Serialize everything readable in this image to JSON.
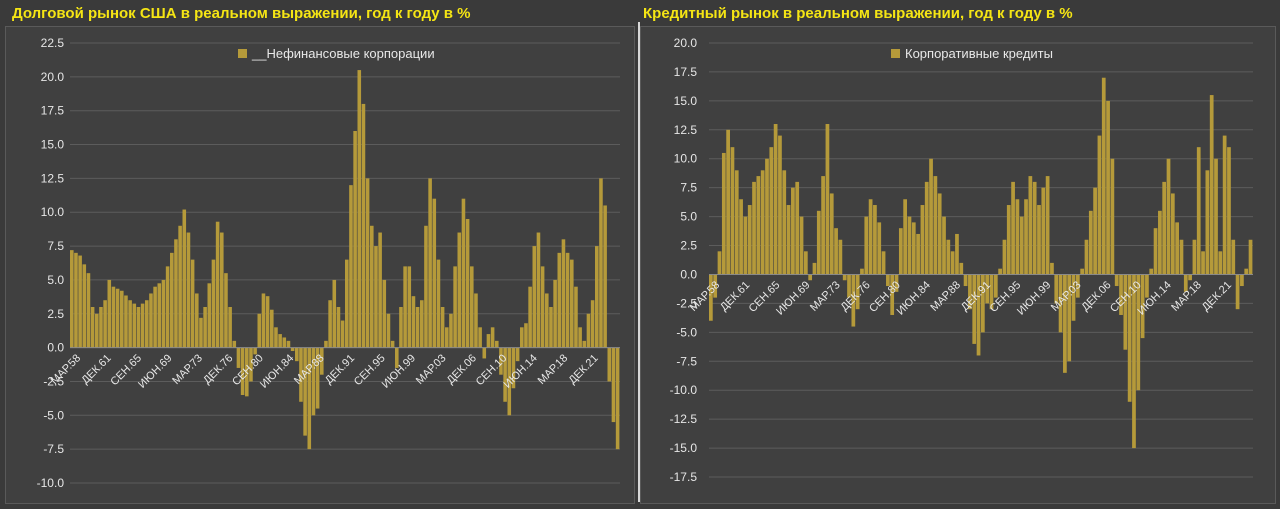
{
  "charts": [
    {
      "title": "Долговой рынок США в реальном выражении, год к году в %",
      "chart_data": {
        "type": "bar",
        "series": [
          {
            "name": "__Нефинансовые корпорации",
            "color": "#b59a3a"
          }
        ],
        "y_ticks": [
          "22.5",
          "20.0",
          "17.5",
          "15.0",
          "12.5",
          "10.0",
          "7.5",
          "5.0",
          "2.5",
          "0.0",
          "-2.5",
          "-5.0",
          "-7.5",
          "-10.0"
        ],
        "ylim": [
          -10,
          22.5
        ],
        "categories": [
          "МАР.58",
          "ДЕК.61",
          "СЕН.65",
          "ИЮН.69",
          "МАР.73",
          "ДЕК.76",
          "СЕН.80",
          "ИЮН.84",
          "МАР.88",
          "ДЕК.91",
          "СЕН.95",
          "ИЮН.99",
          "МАР.03",
          "ДЕК.06",
          "СЕН.10",
          "ИЮН.14",
          "МАР.18",
          "ДЕК.21"
        ],
        "grid": true,
        "legend_position": "top-center",
        "anchors": [
          [
            0,
            7.2
          ],
          [
            2,
            6.8
          ],
          [
            4,
            5.5
          ],
          [
            5,
            3.0
          ],
          [
            6,
            2.5
          ],
          [
            8,
            3.5
          ],
          [
            9,
            5.0
          ],
          [
            10,
            4.5
          ],
          [
            12,
            4.2
          ],
          [
            14,
            3.5
          ],
          [
            16,
            3.0
          ],
          [
            18,
            3.5
          ],
          [
            20,
            4.5
          ],
          [
            22,
            5.0
          ],
          [
            24,
            7.0
          ],
          [
            26,
            9.0
          ],
          [
            27,
            10.2
          ],
          [
            28,
            8.5
          ],
          [
            29,
            6.5
          ],
          [
            30,
            4.0
          ],
          [
            31,
            2.2
          ],
          [
            32,
            3.0
          ],
          [
            34,
            6.5
          ],
          [
            35,
            9.3
          ],
          [
            36,
            8.5
          ],
          [
            37,
            5.5
          ],
          [
            38,
            3.0
          ],
          [
            39,
            0.5
          ],
          [
            40,
            -1.5
          ],
          [
            41,
            -3.5
          ],
          [
            42,
            -3.6
          ],
          [
            43,
            -2.5
          ],
          [
            44,
            -0.5
          ],
          [
            45,
            2.5
          ],
          [
            46,
            4.0
          ],
          [
            47,
            3.8
          ],
          [
            48,
            2.8
          ],
          [
            49,
            1.5
          ],
          [
            50,
            1.0
          ],
          [
            52,
            0.5
          ],
          [
            54,
            -1.0
          ],
          [
            55,
            -4.0
          ],
          [
            56,
            -6.5
          ],
          [
            57,
            -7.5
          ],
          [
            58,
            -5.0
          ],
          [
            59,
            -4.5
          ],
          [
            60,
            -2.0
          ],
          [
            61,
            0.5
          ],
          [
            62,
            3.5
          ],
          [
            63,
            5.0
          ],
          [
            64,
            3.0
          ],
          [
            65,
            2.0
          ],
          [
            66,
            6.5
          ],
          [
            67,
            12.0
          ],
          [
            68,
            16.0
          ],
          [
            69,
            20.5
          ],
          [
            70,
            18.0
          ],
          [
            71,
            12.5
          ],
          [
            72,
            9.0
          ],
          [
            73,
            7.5
          ],
          [
            74,
            8.5
          ],
          [
            75,
            5.0
          ],
          [
            76,
            2.5
          ],
          [
            77,
            0.5
          ],
          [
            78,
            -1.5
          ],
          [
            79,
            3.0
          ],
          [
            80,
            6.0
          ],
          [
            81,
            6.0
          ],
          [
            82,
            3.8
          ],
          [
            83,
            3.0
          ],
          [
            84,
            3.5
          ],
          [
            85,
            9.0
          ],
          [
            86,
            12.5
          ],
          [
            87,
            11.0
          ],
          [
            88,
            6.5
          ],
          [
            89,
            3.0
          ],
          [
            90,
            1.5
          ],
          [
            91,
            2.5
          ],
          [
            92,
            6.0
          ],
          [
            93,
            8.5
          ],
          [
            94,
            11.0
          ],
          [
            95,
            9.5
          ],
          [
            96,
            6.0
          ],
          [
            97,
            4.0
          ],
          [
            98,
            1.5
          ],
          [
            99,
            -0.8
          ],
          [
            100,
            1.0
          ],
          [
            101,
            1.5
          ],
          [
            102,
            0.5
          ],
          [
            103,
            -2.0
          ],
          [
            104,
            -4.0
          ],
          [
            105,
            -5.0
          ],
          [
            106,
            -3.0
          ],
          [
            107,
            -1.0
          ],
          [
            108,
            1.5
          ],
          [
            109,
            1.8
          ],
          [
            110,
            4.5
          ],
          [
            111,
            7.5
          ],
          [
            112,
            8.5
          ],
          [
            113,
            6.0
          ],
          [
            114,
            4.0
          ],
          [
            115,
            3.0
          ],
          [
            116,
            5.0
          ],
          [
            117,
            7.0
          ],
          [
            118,
            8.0
          ],
          [
            119,
            7.0
          ],
          [
            120,
            6.5
          ],
          [
            121,
            4.5
          ],
          [
            122,
            1.5
          ],
          [
            123,
            0.5
          ],
          [
            124,
            2.5
          ],
          [
            125,
            3.5
          ],
          [
            126,
            7.5
          ],
          [
            127,
            12.5
          ],
          [
            128,
            10.5
          ],
          [
            129,
            -2.5
          ],
          [
            130,
            -5.5
          ],
          [
            131,
            -7.5
          ]
        ],
        "n_bars": 132
      }
    },
    {
      "title": "Кредитный рынок в реальном выражении, год к году в %",
      "chart_data": {
        "type": "bar",
        "series": [
          {
            "name": "Корпоративные кредиты",
            "color": "#b59a3a"
          }
        ],
        "y_ticks": [
          "20.0",
          "17.5",
          "15.0",
          "12.5",
          "10.0",
          "7.5",
          "5.0",
          "2.5",
          "0.0",
          "-2.5",
          "-5.0",
          "-7.5",
          "-10.0",
          "-12.5",
          "-15.0",
          "-17.5"
        ],
        "ylim": [
          -17.5,
          20
        ],
        "categories": [
          "МАР.58",
          "ДЕК.61",
          "СЕН.65",
          "ИЮН.69",
          "МАР.73",
          "ДЕК.76",
          "СЕН.80",
          "ИЮН.84",
          "МАР.88",
          "ДЕК.91",
          "СЕН.95",
          "ИЮН.99",
          "МАР.03",
          "ДЕК.06",
          "СЕН.10",
          "ИЮН.14",
          "МАР.18",
          "ДЕК.21"
        ],
        "grid": true,
        "legend_position": "top-center",
        "anchors": [
          [
            0,
            -4.0
          ],
          [
            1,
            -2.0
          ],
          [
            2,
            2.0
          ],
          [
            3,
            10.5
          ],
          [
            4,
            12.5
          ],
          [
            5,
            11.0
          ],
          [
            6,
            9.0
          ],
          [
            7,
            6.5
          ],
          [
            8,
            5.0
          ],
          [
            9,
            6.0
          ],
          [
            10,
            8.0
          ],
          [
            12,
            9.0
          ],
          [
            14,
            11.0
          ],
          [
            15,
            13.0
          ],
          [
            16,
            12.0
          ],
          [
            17,
            9.0
          ],
          [
            18,
            6.0
          ],
          [
            19,
            7.5
          ],
          [
            20,
            8.0
          ],
          [
            21,
            5.0
          ],
          [
            22,
            2.0
          ],
          [
            23,
            -0.5
          ],
          [
            24,
            1.0
          ],
          [
            25,
            5.5
          ],
          [
            26,
            8.5
          ],
          [
            27,
            13.0
          ],
          [
            28,
            7.0
          ],
          [
            29,
            4.0
          ],
          [
            30,
            3.0
          ],
          [
            31,
            -0.5
          ],
          [
            32,
            -2.0
          ],
          [
            33,
            -4.5
          ],
          [
            34,
            -3.0
          ],
          [
            35,
            0.5
          ],
          [
            36,
            5.0
          ],
          [
            37,
            6.5
          ],
          [
            38,
            6.0
          ],
          [
            39,
            4.5
          ],
          [
            40,
            2.0
          ],
          [
            41,
            -1.0
          ],
          [
            42,
            -3.5
          ],
          [
            43,
            -1.5
          ],
          [
            44,
            4.0
          ],
          [
            45,
            6.5
          ],
          [
            46,
            5.0
          ],
          [
            47,
            4.5
          ],
          [
            48,
            3.5
          ],
          [
            49,
            6.0
          ],
          [
            50,
            8.0
          ],
          [
            51,
            10.0
          ],
          [
            52,
            8.5
          ],
          [
            53,
            7.0
          ],
          [
            54,
            5.0
          ],
          [
            55,
            3.0
          ],
          [
            56,
            2.0
          ],
          [
            57,
            3.5
          ],
          [
            58,
            1.0
          ],
          [
            59,
            -1.0
          ],
          [
            60,
            -3.0
          ],
          [
            61,
            -6.0
          ],
          [
            62,
            -7.0
          ],
          [
            63,
            -5.0
          ],
          [
            64,
            -2.5
          ],
          [
            65,
            -3.0
          ],
          [
            66,
            -2.0
          ],
          [
            67,
            0.5
          ],
          [
            68,
            3.0
          ],
          [
            69,
            6.0
          ],
          [
            70,
            8.0
          ],
          [
            71,
            6.5
          ],
          [
            72,
            5.0
          ],
          [
            73,
            6.5
          ],
          [
            74,
            8.5
          ],
          [
            75,
            8.0
          ],
          [
            76,
            6.0
          ],
          [
            77,
            7.5
          ],
          [
            78,
            8.5
          ],
          [
            79,
            1.0
          ],
          [
            80,
            -2.5
          ],
          [
            81,
            -5.0
          ],
          [
            82,
            -8.5
          ],
          [
            83,
            -7.5
          ],
          [
            84,
            -4.0
          ],
          [
            85,
            -2.0
          ],
          [
            86,
            0.5
          ],
          [
            87,
            3.0
          ],
          [
            88,
            5.5
          ],
          [
            89,
            7.5
          ],
          [
            90,
            12.0
          ],
          [
            91,
            17.0
          ],
          [
            92,
            15.0
          ],
          [
            93,
            10.0
          ],
          [
            94,
            -1.0
          ],
          [
            95,
            -3.5
          ],
          [
            96,
            -6.5
          ],
          [
            97,
            -11.0
          ],
          [
            98,
            -15.0
          ],
          [
            99,
            -10.0
          ],
          [
            100,
            -5.5
          ],
          [
            101,
            -2.0
          ],
          [
            102,
            0.5
          ],
          [
            103,
            4.0
          ],
          [
            104,
            5.5
          ],
          [
            105,
            8.0
          ],
          [
            106,
            10.0
          ],
          [
            107,
            7.0
          ],
          [
            108,
            4.5
          ],
          [
            109,
            3.0
          ],
          [
            110,
            -1.5
          ],
          [
            111,
            -0.5
          ],
          [
            112,
            3.0
          ],
          [
            113,
            11.0
          ],
          [
            114,
            2.0
          ],
          [
            115,
            9.0
          ],
          [
            116,
            15.5
          ],
          [
            117,
            10.0
          ],
          [
            118,
            2.0
          ],
          [
            119,
            12.0
          ],
          [
            120,
            11.0
          ],
          [
            121,
            3.0
          ],
          [
            122,
            -3.0
          ],
          [
            123,
            -1.0
          ],
          [
            124,
            0.5
          ],
          [
            125,
            3.0
          ]
        ],
        "n_bars": 126
      }
    }
  ]
}
